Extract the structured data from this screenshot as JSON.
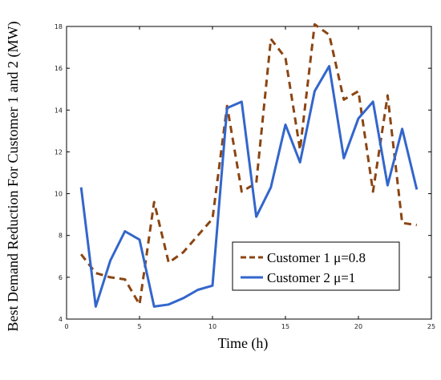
{
  "chart_data": {
    "type": "line",
    "xlabel": "Time (h)",
    "ylabel": "Best Demand Reduction For Customer 1 and 2 (MW)",
    "xlim": [
      0,
      25
    ],
    "ylim": [
      4,
      18
    ],
    "xticks": [
      "0",
      "5",
      "10",
      "15",
      "20",
      "25"
    ],
    "yticks": [
      "4",
      "6",
      "8",
      "10",
      "12",
      "14",
      "16",
      "18"
    ],
    "grid": false,
    "legend_position": "bottom-right",
    "series": [
      {
        "name": "Customer 1 μ=0.8",
        "color": "#8B4513",
        "style": "dashed",
        "x": [
          1,
          2,
          3,
          4,
          5,
          6,
          7,
          8,
          9,
          10,
          11,
          12,
          13,
          14,
          15,
          16,
          17,
          18,
          19,
          20,
          21,
          22,
          23,
          24
        ],
        "values": [
          7.1,
          6.2,
          6.0,
          5.9,
          4.7,
          9.6,
          6.7,
          7.2,
          8.0,
          8.8,
          14.2,
          10.1,
          10.5,
          17.4,
          16.5,
          12.1,
          18.1,
          17.6,
          14.5,
          14.9,
          10.1,
          14.7,
          8.6,
          8.5
        ]
      },
      {
        "name": "Customer 2 μ=1",
        "color": "#3366CC",
        "style": "solid",
        "x": [
          1,
          2,
          3,
          4,
          5,
          6,
          7,
          8,
          9,
          10,
          11,
          12,
          13,
          14,
          15,
          16,
          17,
          18,
          19,
          20,
          21,
          22,
          23,
          24
        ],
        "values": [
          10.3,
          4.6,
          6.8,
          8.2,
          7.8,
          4.6,
          4.7,
          5.0,
          5.4,
          5.6,
          14.1,
          14.4,
          8.9,
          10.3,
          13.3,
          11.5,
          14.9,
          16.1,
          11.7,
          13.6,
          14.4,
          10.4,
          13.1,
          10.2
        ]
      }
    ]
  }
}
